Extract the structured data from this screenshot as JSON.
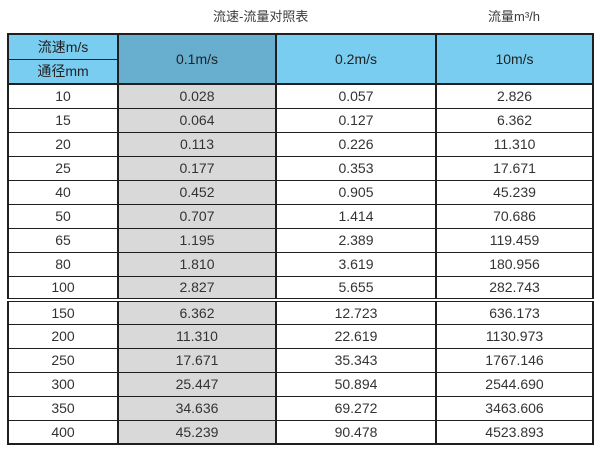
{
  "header": {
    "title": "流速-流量对照表",
    "unit_label": "流量m³/h"
  },
  "chart_data": {
    "type": "table",
    "title": "流速-流量对照表",
    "flow_unit_label": "流量m³/h",
    "corner_labels": {
      "top": "流速m/s",
      "bottom": "通径mm"
    },
    "columns": [
      "0.1m/s",
      "0.2m/s",
      "10m/s"
    ],
    "highlighted_column": "0.1m/s",
    "rows": [
      {
        "diameter": "10",
        "values": [
          "0.028",
          "0.057",
          "2.826"
        ]
      },
      {
        "diameter": "15",
        "values": [
          "0.064",
          "0.127",
          "6.362"
        ]
      },
      {
        "diameter": "20",
        "values": [
          "0.113",
          "0.226",
          "11.310"
        ]
      },
      {
        "diameter": "25",
        "values": [
          "0.177",
          "0.353",
          "17.671"
        ]
      },
      {
        "diameter": "40",
        "values": [
          "0.452",
          "0.905",
          "45.239"
        ]
      },
      {
        "diameter": "50",
        "values": [
          "0.707",
          "1.414",
          "70.686"
        ]
      },
      {
        "diameter": "65",
        "values": [
          "1.195",
          "2.389",
          "119.459"
        ]
      },
      {
        "diameter": "80",
        "values": [
          "1.810",
          "3.619",
          "180.956"
        ]
      },
      {
        "diameter": "100",
        "values": [
          "2.827",
          "5.655",
          "282.743"
        ]
      },
      {
        "diameter": "150",
        "values": [
          "6.362",
          "12.723",
          "636.173"
        ],
        "section_start": true
      },
      {
        "diameter": "200",
        "values": [
          "11.310",
          "22.619",
          "1130.973"
        ]
      },
      {
        "diameter": "250",
        "values": [
          "17.671",
          "35.343",
          "1767.146"
        ]
      },
      {
        "diameter": "300",
        "values": [
          "25.447",
          "50.894",
          "2544.690"
        ]
      },
      {
        "diameter": "350",
        "values": [
          "34.636",
          "69.272",
          "3463.606"
        ]
      },
      {
        "diameter": "400",
        "values": [
          "45.239",
          "90.478",
          "4523.893"
        ]
      }
    ]
  },
  "colors": {
    "header_blue": "#79CDF0",
    "header_blue_highlight": "#67AECF",
    "highlight_column_gray": "#D9D9D9",
    "border_dark": "#1F1F1F",
    "text_dark": "#333333"
  }
}
